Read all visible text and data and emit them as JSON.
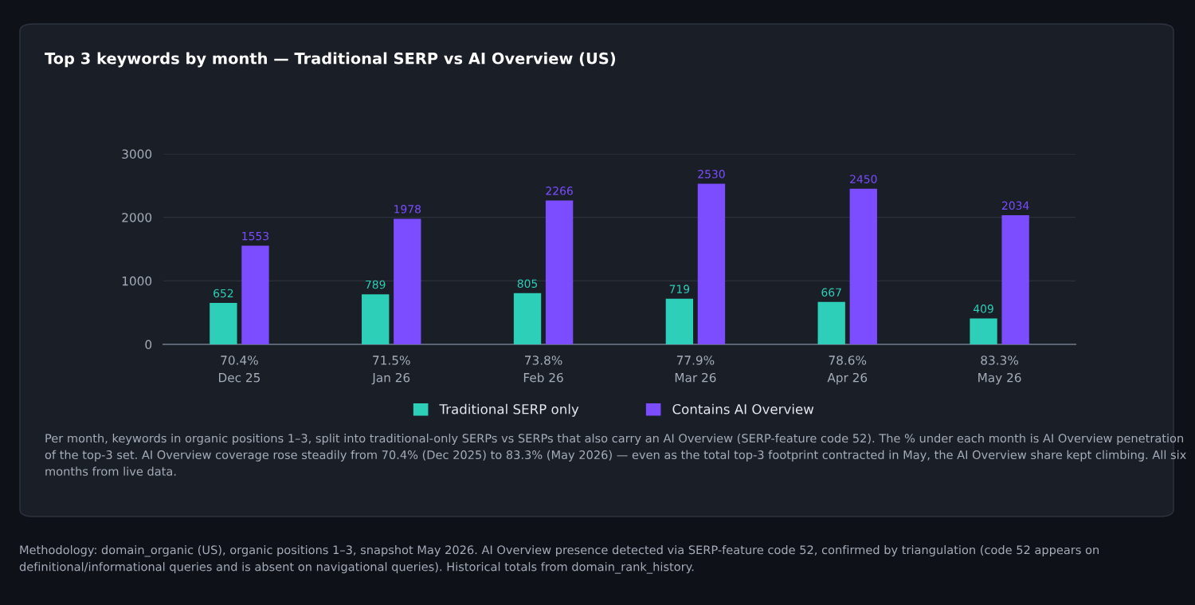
{
  "chart_data": {
    "type": "bar",
    "title": "Top 3 keywords by month — Traditional SERP vs AI Overview (US)",
    "categories": [
      "70.4%\nDec 25",
      "71.5%\nJan 26",
      "73.8%\nFeb 26",
      "77.9%\nMar 26",
      "78.6%\nApr 26",
      "83.3%\nMay 26"
    ],
    "series": [
      {
        "name": "Traditional SERP only",
        "color": "#2ecfb8",
        "values": [
          652,
          789,
          805,
          719,
          667,
          409
        ]
      },
      {
        "name": "Contains AI Overview",
        "color": "#7b4dff",
        "values": [
          1553,
          1978,
          2266,
          2530,
          2450,
          2034
        ]
      }
    ],
    "ylim": [
      0,
      3000
    ],
    "yticks": [
      0,
      1000,
      2000,
      3000
    ],
    "grid": "y",
    "legend": "bottom",
    "data_labels": true,
    "annotations": [
      "Per month, keywords in organic positions 1–3, split into traditional-only SERPs vs SERPs that also carry an AI Overview (SERP-feature code 52). The % under each month is AI Overview penetration of the top-3 set. AI Overview coverage rose steadily from 70.4% (Dec 2025) to 83.3% (May 2026) — even as the total top-3 footprint contracted in May, the AI Overview share kept climbing. All six months from live data.",
      "Methodology: domain_organic (US), organic positions 1–3, snapshot May 2026. AI Overview presence detected via SERP-feature code 52, confirmed by triangulation (code 52 appears on definitional/informational queries and is absent on navigational queries). Historical totals from domain_rank_history."
    ]
  }
}
